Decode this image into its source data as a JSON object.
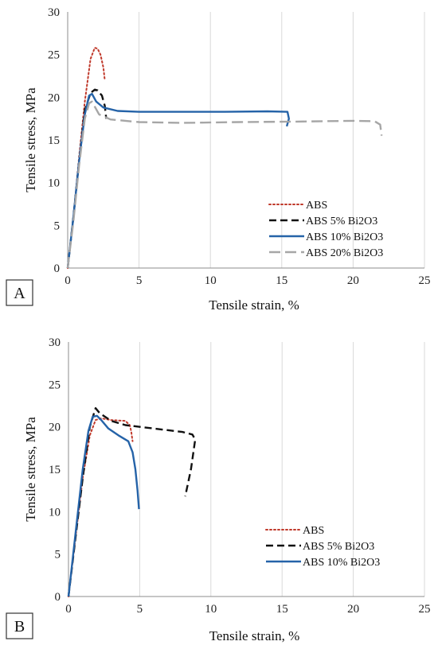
{
  "chart_data": [
    {
      "type": "line",
      "panel_label": "A",
      "xlabel": "Tensile strain, %",
      "ylabel": "Tensile stress, MPa",
      "xlim": [
        0,
        25
      ],
      "ylim": [
        0,
        30
      ],
      "xticks": [
        0,
        5,
        10,
        15,
        20,
        25
      ],
      "yticks": [
        0,
        5,
        10,
        15,
        20,
        25,
        30
      ],
      "grid": "vertical",
      "legend_position": "bottom-right",
      "series": [
        {
          "name": "ABS",
          "color": "#c0392b",
          "dash": "dotted",
          "x": [
            0,
            0.4,
            0.8,
            1.2,
            1.6,
            1.9,
            2.1,
            2.3,
            2.5,
            2.6
          ],
          "y": [
            0,
            6,
            13,
            19.5,
            24.5,
            25.8,
            25.7,
            25,
            23.5,
            22
          ]
        },
        {
          "name": "ABS 5% Bi2O3",
          "color": "#111111",
          "dash": "dashed",
          "x": [
            0,
            0.4,
            0.8,
            1.2,
            1.6,
            1.9,
            2.1,
            2.4,
            2.6,
            2.7
          ],
          "y": [
            0,
            6,
            12.5,
            18.5,
            20.5,
            20.9,
            20.8,
            20.2,
            19,
            17.5
          ]
        },
        {
          "name": "ABS 10% Bi2O3",
          "color": "#2563a8",
          "dash": "solid",
          "x": [
            0,
            0.4,
            0.8,
            1.2,
            1.5,
            1.7,
            2.0,
            2.5,
            3.5,
            5,
            8,
            11,
            14,
            15.4,
            15.5,
            15.35
          ],
          "y": [
            0,
            6,
            12.5,
            18,
            20.2,
            20.4,
            19.5,
            18.8,
            18.4,
            18.3,
            18.3,
            18.3,
            18.35,
            18.3,
            17.5,
            16.6
          ]
        },
        {
          "name": "ABS 20% Bi2O3",
          "color": "#a6a6a6",
          "dash": "longdash",
          "x": [
            0,
            0.4,
            0.8,
            1.2,
            1.5,
            1.7,
            2.2,
            3,
            5,
            8,
            12,
            16,
            20,
            21.5,
            21.9,
            22.0
          ],
          "y": [
            0,
            5.5,
            12,
            17.5,
            19.3,
            19.5,
            18,
            17.4,
            17.1,
            17.0,
            17.1,
            17.15,
            17.25,
            17.2,
            16.8,
            15.5
          ]
        }
      ]
    },
    {
      "type": "line",
      "panel_label": "B",
      "xlabel": "Tensile strain, %",
      "ylabel": "Tensile stress, MPa",
      "xlim": [
        0,
        25
      ],
      "ylim": [
        0,
        30
      ],
      "xticks": [
        0,
        5,
        10,
        15,
        20,
        25
      ],
      "yticks": [
        0,
        5,
        10,
        15,
        20,
        25,
        30
      ],
      "grid": "vertical",
      "legend_position": "bottom-right",
      "series": [
        {
          "name": "ABS",
          "color": "#c0392b",
          "dash": "dotted",
          "x": [
            0,
            0.5,
            1.0,
            1.5,
            1.9,
            2.3,
            3,
            4,
            4.3,
            4.4,
            4.5
          ],
          "y": [
            0,
            7,
            14,
            19,
            20.8,
            21,
            20.8,
            20.7,
            20.2,
            19.5,
            18.3
          ]
        },
        {
          "name": "ABS 5% Bi2O3",
          "color": "#111111",
          "dash": "dashed",
          "x": [
            0,
            0.5,
            1.0,
            1.5,
            1.9,
            2.2,
            3,
            4,
            6,
            8,
            8.7,
            8.9,
            8.6,
            8.2
          ],
          "y": [
            0,
            7,
            14,
            20,
            22.2,
            21.6,
            20.7,
            20.2,
            19.8,
            19.4,
            19.1,
            18.5,
            15,
            11.8
          ]
        },
        {
          "name": "ABS 10% Bi2O3",
          "color": "#2563a8",
          "dash": "solid",
          "x": [
            0,
            0.5,
            1.0,
            1.4,
            1.7,
            2.0,
            2.3,
            2.8,
            3.5,
            4.2,
            4.5,
            4.7,
            4.85,
            4.95
          ],
          "y": [
            0,
            7.5,
            15,
            19.5,
            21.2,
            21.3,
            20.8,
            19.8,
            19,
            18.3,
            17,
            15,
            12.5,
            10.3
          ]
        }
      ]
    }
  ]
}
